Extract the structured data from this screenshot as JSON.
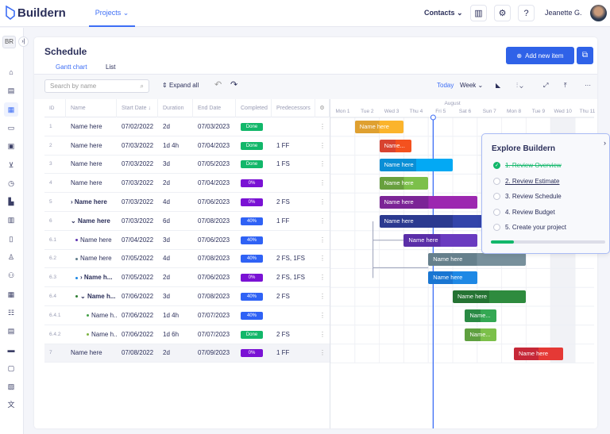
{
  "app": {
    "logo": "Buildern",
    "nav_projects": "Projects",
    "contacts": "Contacts",
    "user": "Jeanette G.",
    "sidebar_initials": "BR"
  },
  "sidebar_icons": [
    "presentation-icon",
    "calculator-icon",
    "calendar-icon",
    "layers-icon",
    "document-dollar-icon",
    "cart-icon",
    "clock-icon",
    "bar-chart-icon",
    "building-dollar-icon",
    "file-icon",
    "worker-icon",
    "team-icon",
    "calendar-check-icon",
    "list-check-icon",
    "invoice-icon",
    "printer-icon",
    "chat-icon",
    "gallery-icon",
    "translate-icon"
  ],
  "page": {
    "title": "Schedule",
    "tabs": [
      "Gantt chart",
      "List"
    ],
    "add_button": "Add new item"
  },
  "toolbar": {
    "search_placeholder": "Search by name",
    "expand_all": "Expand all",
    "today": "Today",
    "scale": "Week"
  },
  "table": {
    "columns": [
      "ID",
      "Name",
      "Start Date",
      "Duration",
      "End Date",
      "Completed",
      "Predecessors"
    ],
    "rows": [
      {
        "id": "1",
        "name": "Name here",
        "start": "07/02/2022",
        "duration": "2d",
        "end": "07/03/2023",
        "completed": "Done",
        "pred": "",
        "level": 0
      },
      {
        "id": "2",
        "name": "Name here",
        "start": "07/03/2022",
        "duration": "1d 4h",
        "end": "07/04/2023",
        "completed": "Done",
        "pred": "1 FF",
        "level": 0
      },
      {
        "id": "3",
        "name": "Name here",
        "start": "07/03/2022",
        "duration": "3d",
        "end": "07/05/2023",
        "completed": "Done",
        "pred": "1 FS",
        "level": 0
      },
      {
        "id": "4",
        "name": "Name here",
        "start": "07/03/2022",
        "duration": "2d",
        "end": "07/04/2023",
        "completed": "0%",
        "pred": "",
        "level": 0
      },
      {
        "id": "5",
        "name": "Name here",
        "start": "07/03/2022",
        "duration": "4d",
        "end": "07/06/2023",
        "completed": "0%",
        "pred": "2 FS",
        "level": 0,
        "toggle": "›"
      },
      {
        "id": "6",
        "name": "Name here",
        "start": "07/03/2022",
        "duration": "6d",
        "end": "07/08/2023",
        "completed": "40%",
        "pred": "1 FF",
        "level": 0,
        "toggle": "⌄"
      },
      {
        "id": "6.1",
        "name": "Name here",
        "start": "07/04/2022",
        "duration": "3d",
        "end": "07/06/2023",
        "completed": "40%",
        "pred": "",
        "level": 1,
        "dot": "#5e35b1"
      },
      {
        "id": "6.2",
        "name": "Name here",
        "start": "07/05/2022",
        "duration": "4d",
        "end": "07/08/2023",
        "completed": "40%",
        "pred": "2 FS, 1FS",
        "level": 1,
        "dot": "#607d8b"
      },
      {
        "id": "6.3",
        "name": "Name h...",
        "start": "07/05/2022",
        "duration": "2d",
        "end": "07/06/2023",
        "completed": "0%",
        "pred": "2 FS, 1FS",
        "level": 1,
        "dot": "#1e88e5",
        "toggle": "›"
      },
      {
        "id": "6.4",
        "name": "Name h...",
        "start": "07/06/2022",
        "duration": "3d",
        "end": "07/08/2023",
        "completed": "40%",
        "pred": "2 FS",
        "level": 1,
        "dot": "#2e7d32",
        "toggle": "⌄"
      },
      {
        "id": "6.4.1",
        "name": "Name h...",
        "start": "07/06/2022",
        "duration": "1d 4h",
        "end": "07/07/2023",
        "completed": "40%",
        "pred": "",
        "level": 2,
        "dot": "#43a047"
      },
      {
        "id": "6.4.2",
        "name": "Name h...",
        "start": "07/06/2022",
        "duration": "1d 6h",
        "end": "07/07/2023",
        "completed": "Done",
        "pred": "2 FS",
        "level": 2,
        "dot": "#7cb342"
      },
      {
        "id": "7",
        "name": "Name here",
        "start": "07/08/2022",
        "duration": "2d",
        "end": "07/09/2023",
        "completed": "0%",
        "pred": "1 FF",
        "level": 0
      }
    ]
  },
  "status_colors": {
    "Done": "#12b76a",
    "0%": "#7a12d4",
    "40%": "#2f62f5"
  },
  "gantt": {
    "month": "August",
    "days": [
      "Mon 1",
      "Tue 2",
      "Wed 3",
      "Thu 4",
      "Fri 5",
      "Sat 6",
      "Sun 7",
      "Mon 8",
      "Tue 9",
      "Wed 10",
      "Thu 11"
    ],
    "today_day": 5.2,
    "bars": [
      {
        "label": "Name here",
        "start": 2,
        "end": 4,
        "color": "#fbb42c",
        "dark": "#dfa030"
      },
      {
        "label": "Name...",
        "start": 3,
        "end": 4.3,
        "color": "#f4511e",
        "dark": "#d84330"
      },
      {
        "label": "Name here",
        "start": 3,
        "end": 6,
        "color": "#03a9f4",
        "dark": "#0a8fd6"
      },
      {
        "label": "Name here",
        "start": 3,
        "end": 5,
        "color": "#7cc04a",
        "dark": "#68a03e"
      },
      {
        "label": "Name here",
        "start": 3,
        "end": 7,
        "color": "#9c27b0",
        "dark": "#7b2496"
      },
      {
        "label": "Name here",
        "start": 3,
        "end": 9,
        "color": "#3344aa",
        "dark": "#2b3a90"
      },
      {
        "label": "Name here",
        "start": 4,
        "end": 7,
        "color": "#6a3bc0",
        "dark": "#5a2ea8"
      },
      {
        "label": "Name here",
        "start": 5,
        "end": 9,
        "color": "#78909c",
        "dark": "#66808c"
      },
      {
        "label": "Name here",
        "start": 5,
        "end": 7,
        "color": "#1e88e5",
        "dark": "#1976d2"
      },
      {
        "label": "Name here",
        "start": 6,
        "end": 9,
        "color": "#2e8b3e",
        "dark": "#257333"
      },
      {
        "label": "Name...",
        "start": 6.5,
        "end": 7.8,
        "color": "#34a853",
        "dark": "#2a8a44"
      },
      {
        "label": "Name...",
        "start": 6.5,
        "end": 7.8,
        "color": "#7cc04a",
        "dark": "#5fa040"
      },
      {
        "label": "Name here",
        "start": 8.5,
        "end": 10.5,
        "color": "#e53935",
        "dark": "#c62838"
      }
    ]
  },
  "explore": {
    "title": "Explore Buildern",
    "steps": [
      "1. Review Overview",
      "2. Review Estimate",
      "3. Review Schedule",
      "4. Review Budget",
      "5. Create your project"
    ],
    "done_steps": 1,
    "progress": 0.2
  }
}
